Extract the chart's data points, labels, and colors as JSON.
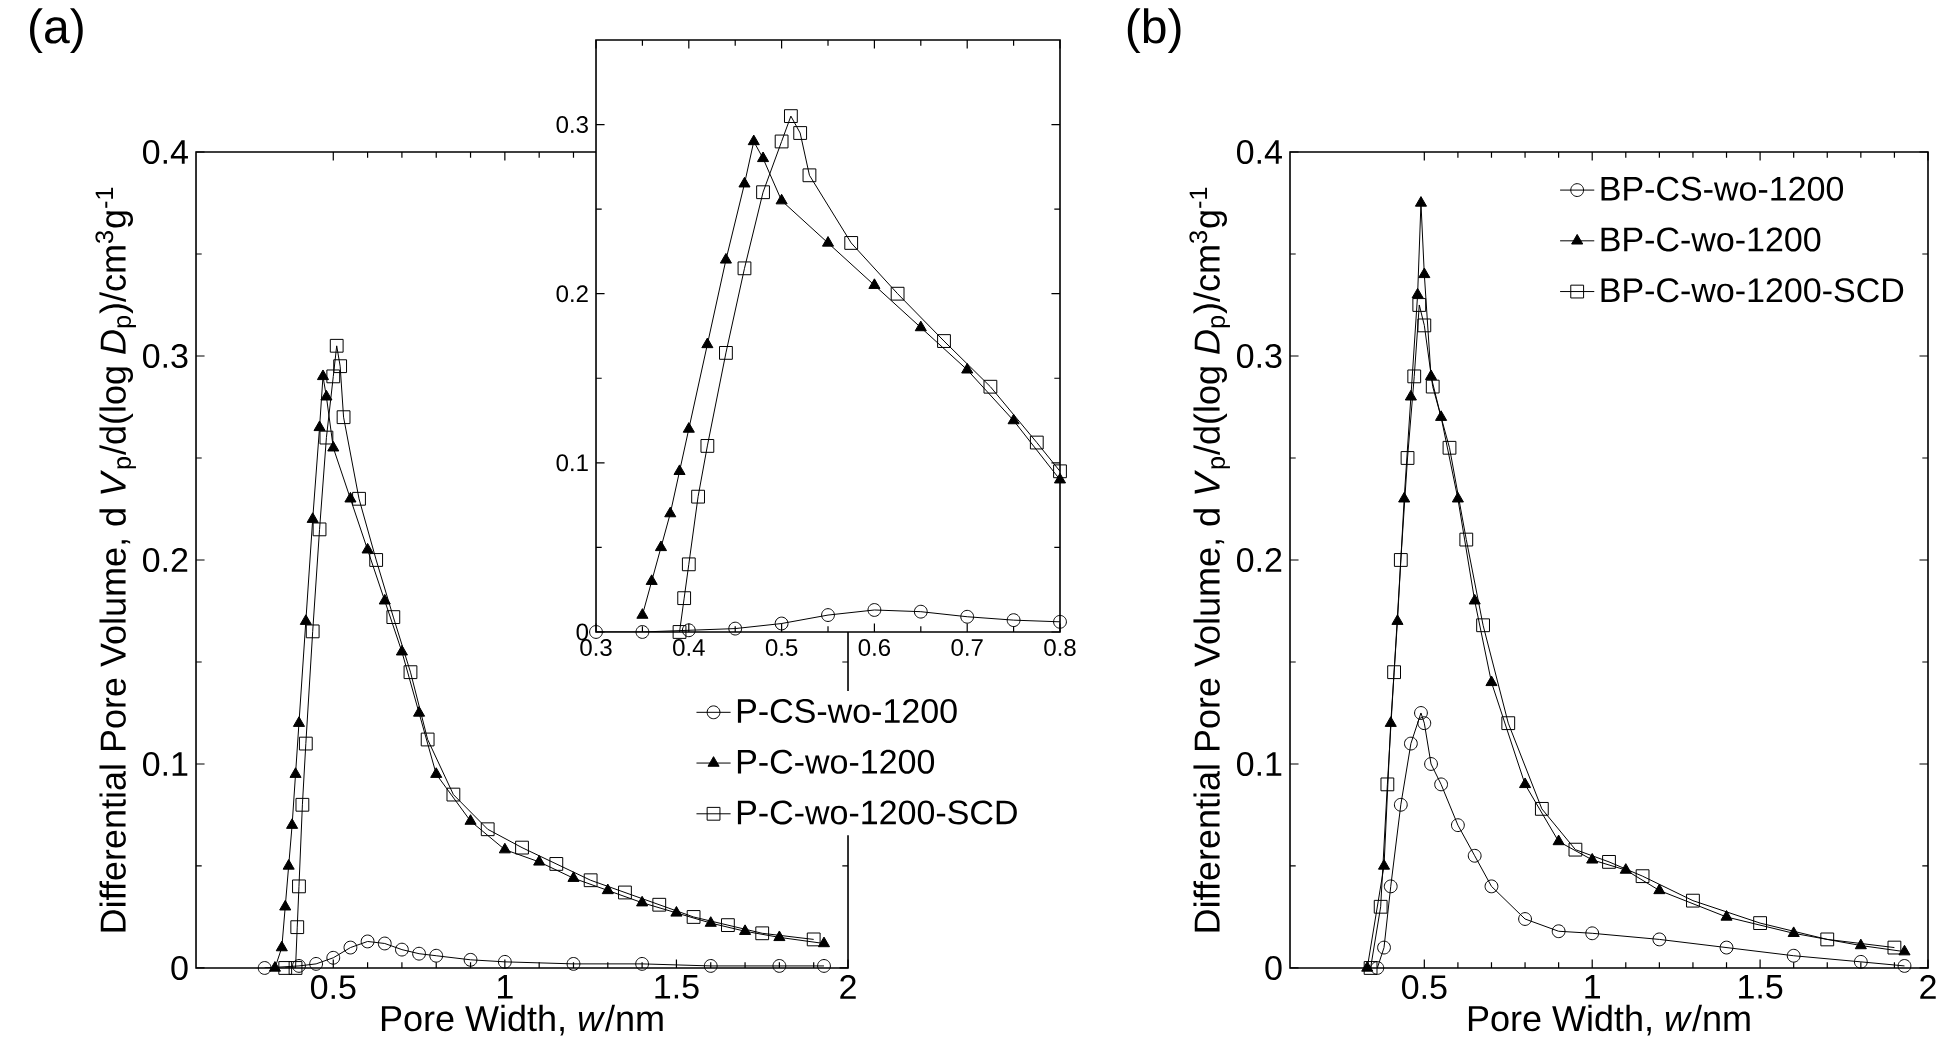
{
  "chart_data": [
    {
      "type": "line",
      "title": "(a)",
      "xlabel": "Pore Width, *w*/nm",
      "ylabel": "Differential Pore Volume, d *V*$_{p}$/d(log *D*$_{p}$)/cm$^{3}$g$^{-1}$",
      "xlim": [
        0.1,
        2
      ],
      "ylim": [
        0,
        0.4
      ],
      "xticks": [
        0.5,
        1,
        1.5,
        2
      ],
      "yticks": [
        0,
        0.1,
        0.2,
        0.3,
        0.4
      ],
      "legend": "right",
      "line_style": "solid",
      "series": [
        {
          "name": "P-CS-wo-1200",
          "color": "#000000",
          "marker": "circle",
          "x": [
            0.3,
            0.4,
            0.45,
            0.5,
            0.55,
            0.6,
            0.65,
            0.7,
            0.75,
            0.8,
            0.9,
            1.0,
            1.2,
            1.4,
            1.6,
            1.8,
            1.93
          ],
          "values": [
            0,
            0.001,
            0.002,
            0.005,
            0.01,
            0.013,
            0.012,
            0.009,
            0.007,
            0.006,
            0.004,
            0.003,
            0.002,
            0.002,
            0.001,
            0.001,
            0.001
          ]
        },
        {
          "name": "P-C-wo-1200",
          "color": "#000000",
          "marker": "triangle",
          "x": [
            0.33,
            0.35,
            0.36,
            0.37,
            0.38,
            0.39,
            0.4,
            0.42,
            0.44,
            0.46,
            0.47,
            0.48,
            0.5,
            0.55,
            0.6,
            0.65,
            0.7,
            0.75,
            0.8,
            0.9,
            1.0,
            1.1,
            1.2,
            1.3,
            1.4,
            1.5,
            1.6,
            1.7,
            1.8,
            1.93
          ],
          "values": [
            0,
            0.01,
            0.03,
            0.05,
            0.07,
            0.095,
            0.12,
            0.17,
            0.22,
            0.265,
            0.29,
            0.28,
            0.255,
            0.23,
            0.205,
            0.18,
            0.155,
            0.125,
            0.095,
            0.072,
            0.058,
            0.052,
            0.044,
            0.038,
            0.032,
            0.027,
            0.022,
            0.018,
            0.015,
            0.012
          ]
        },
        {
          "name": "P-C-wo-1200-SCD",
          "color": "#000000",
          "marker": "square",
          "x": [
            0.36,
            0.39,
            0.395,
            0.4,
            0.41,
            0.42,
            0.44,
            0.46,
            0.48,
            0.5,
            0.51,
            0.52,
            0.53,
            0.575,
            0.625,
            0.675,
            0.725,
            0.775,
            0.85,
            0.95,
            1.05,
            1.15,
            1.25,
            1.35,
            1.45,
            1.55,
            1.65,
            1.75,
            1.9
          ],
          "values": [
            0,
            0,
            0.02,
            0.04,
            0.08,
            0.11,
            0.165,
            0.215,
            0.26,
            0.29,
            0.305,
            0.295,
            0.27,
            0.23,
            0.2,
            0.172,
            0.145,
            0.112,
            0.085,
            0.068,
            0.059,
            0.051,
            0.043,
            0.037,
            0.031,
            0.025,
            0.021,
            0.017,
            0.014
          ]
        }
      ]
    },
    {
      "type": "line",
      "xlim": [
        0.3,
        0.8
      ],
      "ylim": [
        0,
        0.35
      ],
      "xticks": [
        0.3,
        0.4,
        0.5,
        0.6,
        0.7,
        0.8
      ],
      "yticks": [
        0,
        0.1,
        0.2,
        0.3
      ],
      "line_style": "solid",
      "series": [
        {
          "color": "#000000",
          "marker": "circle",
          "x": [
            0.3,
            0.35,
            0.4,
            0.45,
            0.5,
            0.55,
            0.6,
            0.65,
            0.7,
            0.75,
            0.8
          ],
          "values": [
            0,
            0,
            0.001,
            0.002,
            0.005,
            0.01,
            0.013,
            0.012,
            0.009,
            0.007,
            0.006
          ]
        },
        {
          "color": "#000000",
          "marker": "triangle",
          "x": [
            0.35,
            0.36,
            0.37,
            0.38,
            0.39,
            0.4,
            0.42,
            0.44,
            0.46,
            0.47,
            0.48,
            0.5,
            0.55,
            0.6,
            0.65,
            0.7,
            0.75,
            0.8
          ],
          "values": [
            0.01,
            0.03,
            0.05,
            0.07,
            0.095,
            0.12,
            0.17,
            0.22,
            0.265,
            0.29,
            0.28,
            0.255,
            0.23,
            0.205,
            0.18,
            0.155,
            0.125,
            0.09
          ]
        },
        {
          "color": "#000000",
          "marker": "square",
          "x": [
            0.39,
            0.395,
            0.4,
            0.41,
            0.42,
            0.44,
            0.46,
            0.48,
            0.5,
            0.51,
            0.52,
            0.53,
            0.575,
            0.625,
            0.675,
            0.725,
            0.775,
            0.8
          ],
          "values": [
            0,
            0.02,
            0.04,
            0.08,
            0.11,
            0.165,
            0.215,
            0.26,
            0.29,
            0.305,
            0.295,
            0.27,
            0.23,
            0.2,
            0.172,
            0.145,
            0.112,
            0.095
          ]
        }
      ]
    },
    {
      "type": "line",
      "title": "(b)",
      "xlabel": "Pore Width, *w*/nm",
      "ylabel": "Differential Pore Volume, d *V*$_{p}$/d(log *D*$_{p}$)/cm$^{3}$g$^{-1}$",
      "xlim": [
        0.1,
        2
      ],
      "ylim": [
        0,
        0.4
      ],
      "xticks": [
        0.5,
        1,
        1.5,
        2
      ],
      "yticks": [
        0,
        0.1,
        0.2,
        0.3,
        0.4
      ],
      "legend": "top right",
      "line_style": "solid",
      "series": [
        {
          "name": "BP-CS-wo-1200",
          "color": "#000000",
          "marker": "circle",
          "x": [
            0.36,
            0.38,
            0.4,
            0.43,
            0.46,
            0.49,
            0.5,
            0.52,
            0.55,
            0.6,
            0.65,
            0.7,
            0.8,
            0.9,
            1.0,
            1.2,
            1.4,
            1.6,
            1.8,
            1.93
          ],
          "values": [
            0,
            0.01,
            0.04,
            0.08,
            0.11,
            0.125,
            0.12,
            0.1,
            0.09,
            0.07,
            0.055,
            0.04,
            0.024,
            0.018,
            0.017,
            0.014,
            0.01,
            0.006,
            0.003,
            0.001
          ]
        },
        {
          "name": "BP-C-wo-1200",
          "color": "#000000",
          "marker": "triangle",
          "x": [
            0.33,
            0.38,
            0.4,
            0.42,
            0.44,
            0.46,
            0.48,
            0.49,
            0.5,
            0.52,
            0.55,
            0.6,
            0.65,
            0.7,
            0.8,
            0.9,
            1.0,
            1.1,
            1.2,
            1.4,
            1.6,
            1.8,
            1.93
          ],
          "values": [
            0,
            0.05,
            0.12,
            0.17,
            0.23,
            0.28,
            0.33,
            0.375,
            0.34,
            0.29,
            0.27,
            0.23,
            0.18,
            0.14,
            0.09,
            0.062,
            0.053,
            0.048,
            0.038,
            0.025,
            0.017,
            0.011,
            0.008
          ]
        },
        {
          "name": "BP-C-wo-1200-SCD",
          "color": "#000000",
          "marker": "square",
          "x": [
            0.34,
            0.37,
            0.39,
            0.41,
            0.43,
            0.45,
            0.47,
            0.485,
            0.5,
            0.525,
            0.575,
            0.625,
            0.675,
            0.75,
            0.85,
            0.95,
            1.05,
            1.15,
            1.3,
            1.5,
            1.7,
            1.9
          ],
          "values": [
            0,
            0.03,
            0.09,
            0.145,
            0.2,
            0.25,
            0.29,
            0.325,
            0.315,
            0.285,
            0.255,
            0.21,
            0.168,
            0.12,
            0.078,
            0.058,
            0.052,
            0.045,
            0.033,
            0.022,
            0.014,
            0.01
          ]
        }
      ]
    }
  ]
}
